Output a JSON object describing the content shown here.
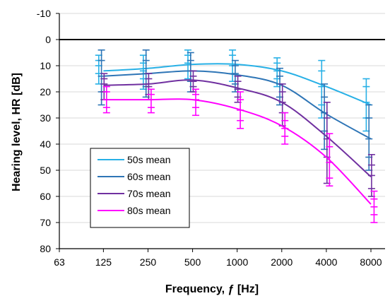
{
  "chart_data": {
    "type": "line",
    "xlabel": "Frequency, ƒ [Hz]",
    "ylabel": "Hearing level, HR [dB]",
    "x_scale": "log2",
    "x_ticks": [
      63,
      125,
      250,
      500,
      1000,
      2000,
      4000,
      8000
    ],
    "x_tick_labels": [
      "63",
      "125",
      "250",
      "500",
      "1000",
      "2000",
      "4000",
      "8000"
    ],
    "ylim": [
      80,
      -10
    ],
    "y_ticks": [
      -10,
      0,
      10,
      20,
      30,
      40,
      50,
      60,
      70,
      80
    ],
    "y_tick_labels": [
      "-10",
      "0",
      "10",
      "20",
      "30",
      "40",
      "50",
      "60",
      "70",
      "80"
    ],
    "legend_position": "lower-left",
    "x": [
      125,
      250,
      500,
      1000,
      2000,
      4000,
      8000
    ],
    "series": [
      {
        "name": "50s mean",
        "color": "#27b0e6",
        "values": [
          12,
          11,
          9.5,
          9.5,
          12,
          18,
          25
        ],
        "x_offset": 0.93,
        "err_low": [
          [
            6,
            8,
            10,
            13,
            17
          ],
          [
            6,
            9,
            12,
            15,
            19
          ],
          [
            4,
            6,
            9,
            12,
            15
          ],
          [
            4,
            6,
            10,
            13,
            16
          ],
          [
            7,
            9,
            12,
            15,
            18
          ],
          [
            8,
            12,
            18,
            25,
            30
          ],
          [
            15,
            18,
            24,
            30,
            35
          ]
        ]
      },
      {
        "name": "60s mean",
        "color": "#2e75b6",
        "values": [
          14,
          13,
          12,
          13.5,
          17.5,
          28.5,
          38
        ],
        "x_offset": 0.97,
        "err_low": [
          [
            4,
            8,
            14,
            20,
            25
          ],
          [
            4,
            8,
            13,
            18,
            22
          ],
          [
            5,
            8,
            12,
            16,
            20
          ],
          [
            8,
            10,
            13,
            17,
            20
          ],
          [
            11,
            14,
            17,
            22,
            25
          ],
          [
            17,
            22,
            28,
            35,
            42
          ],
          [
            25,
            30,
            38,
            45,
            50
          ]
        ]
      },
      {
        "name": "70s mean",
        "color": "#7030a0",
        "values": [
          17.5,
          17,
          15.5,
          18.5,
          24,
          37,
          52.5
        ],
        "x_offset": 1.01,
        "err_low": [
          [
            13,
            15,
            17,
            20,
            23
          ],
          [
            13,
            15,
            18,
            21,
            23
          ],
          [
            12,
            14,
            16,
            18,
            20
          ],
          [
            14,
            16,
            19,
            22,
            24
          ],
          [
            17,
            20,
            24,
            28,
            33
          ],
          [
            24,
            30,
            38,
            45,
            55
          ],
          [
            44,
            48,
            52,
            57,
            60
          ]
        ]
      },
      {
        "name": "80s mean",
        "color": "#ff00ff",
        "values": [
          23,
          23,
          23,
          26.5,
          33,
          45,
          63
        ],
        "x_offset": 1.05,
        "err_low": [
          [
            18,
            20,
            23,
            26,
            28
          ],
          [
            19,
            21,
            23,
            26,
            28
          ],
          [
            19,
            21,
            23,
            26,
            29
          ],
          [
            20,
            23,
            27,
            31,
            34
          ],
          [
            28,
            31,
            34,
            37,
            40
          ],
          [
            36,
            41,
            47,
            53,
            56
          ],
          [
            58,
            61,
            64,
            67,
            70
          ]
        ]
      }
    ]
  }
}
